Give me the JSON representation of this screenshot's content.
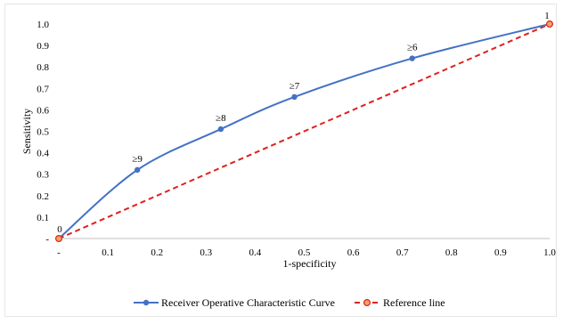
{
  "chart_data": {
    "type": "line",
    "xlabel": "1-specificity",
    "ylabel": "Sensitivity",
    "xlim": [
      0,
      1
    ],
    "ylim": [
      0,
      1
    ],
    "x_ticks": [
      "-",
      "0.1",
      "0.2",
      "0.3",
      "0.4",
      "0.5",
      "0.6",
      "0.7",
      "0.8",
      "0.9",
      "1.0"
    ],
    "y_ticks": [
      "-",
      "0.1",
      "0.2",
      "0.3",
      "0.4",
      "0.5",
      "0.6",
      "0.7",
      "0.8",
      "0.9",
      "1.0"
    ],
    "grid": false,
    "legend_position": "bottom",
    "series": [
      {
        "name": "Receiver Operative Characteristic Curve",
        "color": "#4472c4",
        "style": "solid",
        "marker": "circle",
        "smooth": true,
        "points": [
          {
            "x": 0.0,
            "y": 0.0,
            "label": "0"
          },
          {
            "x": 0.16,
            "y": 0.32,
            "label": "≥9"
          },
          {
            "x": 0.33,
            "y": 0.51,
            "label": "≥8"
          },
          {
            "x": 0.48,
            "y": 0.66,
            "label": "≥7"
          },
          {
            "x": 0.72,
            "y": 0.84,
            "label": "≥6"
          },
          {
            "x": 1.0,
            "y": 1.0,
            "label": "1"
          }
        ]
      },
      {
        "name": "Reference line",
        "color": "#e02020",
        "marker_fill": "#f4a460",
        "style": "dashed",
        "marker": "circle",
        "points": [
          {
            "x": 0.0,
            "y": 0.0
          },
          {
            "x": 1.0,
            "y": 1.0
          }
        ]
      }
    ]
  }
}
